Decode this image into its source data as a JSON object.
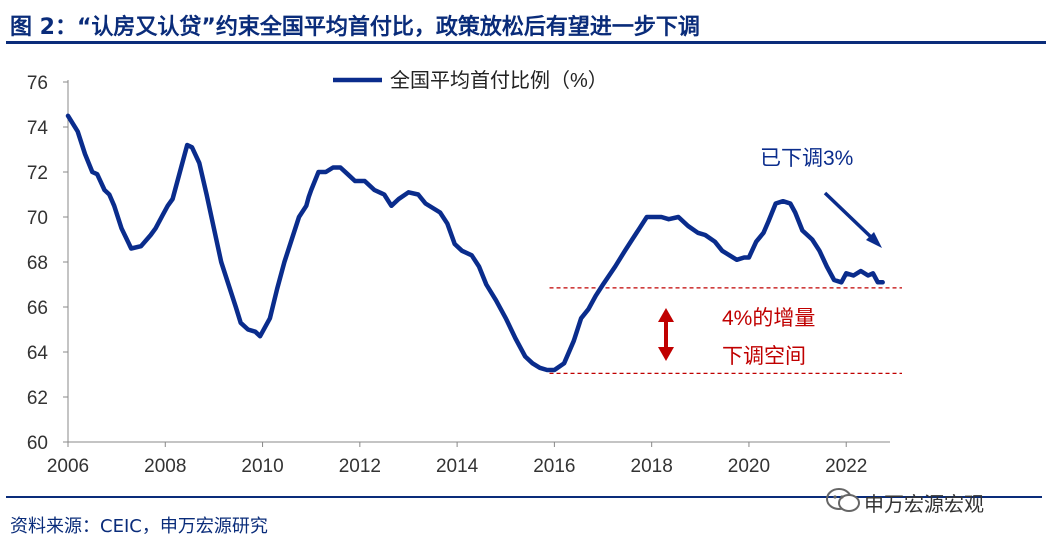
{
  "title": "图 2：“认房又认贷”约束全国平均首付比，政策放松后有望进一步下调",
  "source": "资料来源：CEIC，申万宏源研究",
  "watermark": "申万宏源宏观",
  "colors": {
    "series": "#0a2c8c",
    "annotation": "#c00000",
    "title": "#0a2c7a"
  },
  "chart_data": {
    "type": "line",
    "title": "",
    "xlabel": "",
    "ylabel": "",
    "ylim": [
      60,
      76
    ],
    "xlim": [
      2006,
      2022.9
    ],
    "yticks": [
      "60",
      "62",
      "64",
      "66",
      "68",
      "70",
      "72",
      "74",
      "76"
    ],
    "xticks": [
      "2006",
      "2008",
      "2010",
      "2012",
      "2014",
      "2016",
      "2018",
      "2020",
      "2022"
    ],
    "legend": "top-center",
    "grid": false,
    "series": [
      {
        "name": "全国平均首付比例（%）",
        "x": [
          2006.0,
          2006.2,
          2006.35,
          2006.5,
          2006.6,
          2006.75,
          2006.85,
          2006.95,
          2007.1,
          2007.3,
          2007.5,
          2007.7,
          2007.8,
          2007.95,
          2008.05,
          2008.15,
          2008.3,
          2008.45,
          2008.55,
          2008.7,
          2008.85,
          2009.0,
          2009.15,
          2009.3,
          2009.45,
          2009.55,
          2009.7,
          2009.85,
          2009.95,
          2010.15,
          2010.3,
          2010.45,
          2010.6,
          2010.75,
          2010.9,
          2010.95,
          2011.0,
          2011.15,
          2011.3,
          2011.45,
          2011.6,
          2011.75,
          2011.9,
          2012.1,
          2012.3,
          2012.5,
          2012.65,
          2012.8,
          2013.0,
          2013.2,
          2013.35,
          2013.5,
          2013.65,
          2013.8,
          2013.95,
          2014.1,
          2014.3,
          2014.45,
          2014.6,
          2014.8,
          2015.0,
          2015.2,
          2015.4,
          2015.55,
          2015.7,
          2015.85,
          2016.0,
          2016.2,
          2016.4,
          2016.55,
          2016.7,
          2016.85,
          2017.0,
          2017.25,
          2017.45,
          2017.6,
          2017.75,
          2017.9,
          2018.0,
          2018.2,
          2018.35,
          2018.55,
          2018.75,
          2018.95,
          2019.1,
          2019.3,
          2019.45,
          2019.6,
          2019.75,
          2019.9,
          2020.0,
          2020.15,
          2020.3,
          2020.4,
          2020.55,
          2020.7,
          2020.85,
          2020.95,
          2021.1,
          2021.3,
          2021.45,
          2021.6,
          2021.75,
          2021.9,
          2022.0,
          2022.15,
          2022.3,
          2022.45,
          2022.55,
          2022.65,
          2022.75
        ],
        "values": [
          74.5,
          73.8,
          72.8,
          72.0,
          71.9,
          71.2,
          71.0,
          70.5,
          69.5,
          68.6,
          68.7,
          69.2,
          69.5,
          70.1,
          70.5,
          70.8,
          72.0,
          73.2,
          73.1,
          72.4,
          71.0,
          69.5,
          68.0,
          67.0,
          66.0,
          65.3,
          65.0,
          64.9,
          64.7,
          65.5,
          66.8,
          68.0,
          69.0,
          70.0,
          70.5,
          70.9,
          71.2,
          72.0,
          72.0,
          72.2,
          72.2,
          71.9,
          71.6,
          71.6,
          71.2,
          71.0,
          70.5,
          70.8,
          71.1,
          71.0,
          70.6,
          70.4,
          70.2,
          69.7,
          68.8,
          68.5,
          68.3,
          67.8,
          67.0,
          66.3,
          65.5,
          64.6,
          63.8,
          63.5,
          63.3,
          63.2,
          63.2,
          63.5,
          64.5,
          65.5,
          65.9,
          66.5,
          67.0,
          67.8,
          68.5,
          69.0,
          69.5,
          70.0,
          70.0,
          70.0,
          69.9,
          70.0,
          69.6,
          69.3,
          69.2,
          68.9,
          68.5,
          68.3,
          68.1,
          68.2,
          68.2,
          68.9,
          69.3,
          69.8,
          70.6,
          70.7,
          70.6,
          70.2,
          69.4,
          69.0,
          68.5,
          67.8,
          67.2,
          67.1,
          67.5,
          67.4,
          67.6,
          67.4,
          67.5,
          67.1,
          67.1
        ]
      }
    ],
    "annotations": {
      "arrow_label": "已下调3%",
      "space_label_line1": "4%的增量",
      "space_label_line2": "下调空间",
      "ref_upper": 66.85,
      "ref_lower": 63.05,
      "ref_start_x": 2015.9
    }
  }
}
